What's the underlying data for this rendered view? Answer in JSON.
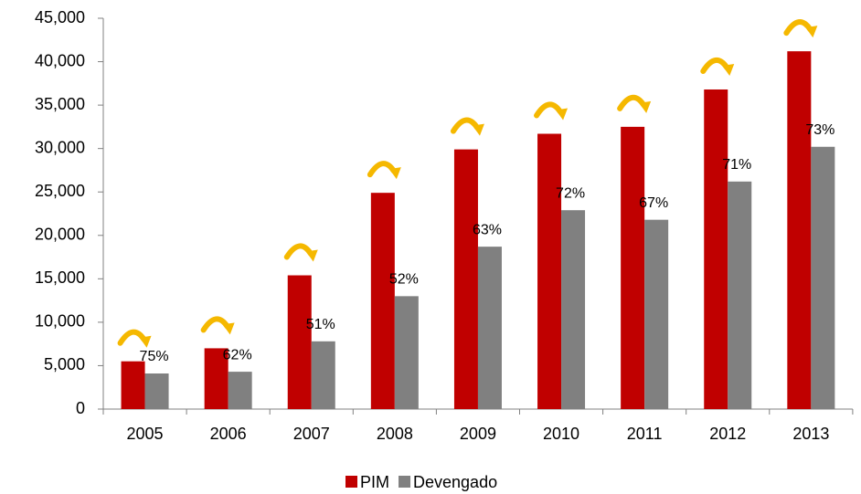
{
  "chart_data": {
    "type": "bar",
    "categories": [
      "2005",
      "2006",
      "2007",
      "2008",
      "2009",
      "2010",
      "2011",
      "2012",
      "2013"
    ],
    "series": [
      {
        "name": "PIM",
        "color": "#c00000",
        "values": [
          5500,
          7000,
          15400,
          24900,
          29900,
          31700,
          32500,
          36800,
          41200
        ]
      },
      {
        "name": "Devengado",
        "color": "#808080",
        "values": [
          4100,
          4300,
          7800,
          13000,
          18700,
          22900,
          21800,
          26200,
          30200
        ]
      }
    ],
    "ratio_labels": [
      "75%",
      "62%",
      "51%",
      "52%",
      "63%",
      "72%",
      "67%",
      "71%",
      "73%"
    ],
    "ylim": [
      0,
      45000
    ],
    "yticks": [
      0,
      {
        "value": 5000,
        "label": "5,000"
      },
      {
        "value": 10000,
        "label": "10,000"
      },
      {
        "value": 15000,
        "label": "15,000"
      },
      {
        "value": 20000,
        "label": "20,000"
      },
      {
        "value": 25000,
        "label": "25,000"
      },
      {
        "value": 30000,
        "label": "30,000"
      },
      {
        "value": 35000,
        "label": "35,000"
      },
      {
        "value": 40000,
        "label": "40,000"
      },
      {
        "value": 45000,
        "label": "45,000"
      }
    ],
    "grid": false,
    "legend": "bottom"
  }
}
